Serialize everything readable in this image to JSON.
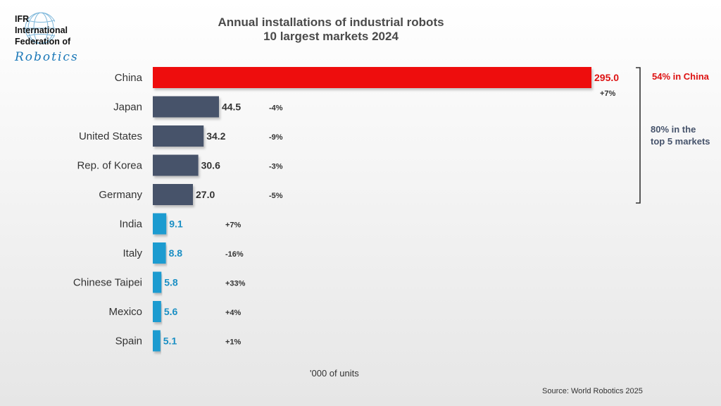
{
  "logo": {
    "line1": "IFR",
    "line2": "International",
    "line3": "Federation of",
    "script": "Robotics"
  },
  "title": {
    "line1": "Annual installations of industrial robots",
    "line2": "10 largest markets 2024"
  },
  "chart_data": {
    "type": "bar",
    "orientation": "horizontal",
    "categories": [
      "China",
      "Japan",
      "United States",
      "Rep. of Korea",
      "Germany",
      "India",
      "Italy",
      "Chinese Taipei",
      "Mexico",
      "Spain"
    ],
    "values": [
      295.0,
      44.5,
      34.2,
      30.6,
      27.0,
      9.1,
      8.8,
      5.8,
      5.6,
      5.1
    ],
    "value_labels": [
      "295.0",
      "44.5",
      "34.2",
      "30.6",
      "27.0",
      "9.1",
      "8.8",
      "5.8",
      "5.6",
      "5.1"
    ],
    "changes": [
      "+7%",
      "-4%",
      "-9%",
      "-3%",
      "-5%",
      "+7%",
      "-16%",
      "+33%",
      "+4%",
      "+1%"
    ],
    "groups": [
      "top",
      "top5",
      "top5",
      "top5",
      "top5",
      "rest",
      "rest",
      "rest",
      "rest",
      "rest"
    ],
    "xlim": [
      0,
      295
    ],
    "xlabel": "'000 of units",
    "grid": false,
    "legend": "none",
    "colors": {
      "top": "#ee1111",
      "top5": "#46536b",
      "rest": "#1a9bd0"
    },
    "annotations": {
      "china_share": "54% in China",
      "top5_share_line1": "80% in the",
      "top5_share_line2": "top 5 markets"
    }
  },
  "source": "Source: World Robotics 2025"
}
